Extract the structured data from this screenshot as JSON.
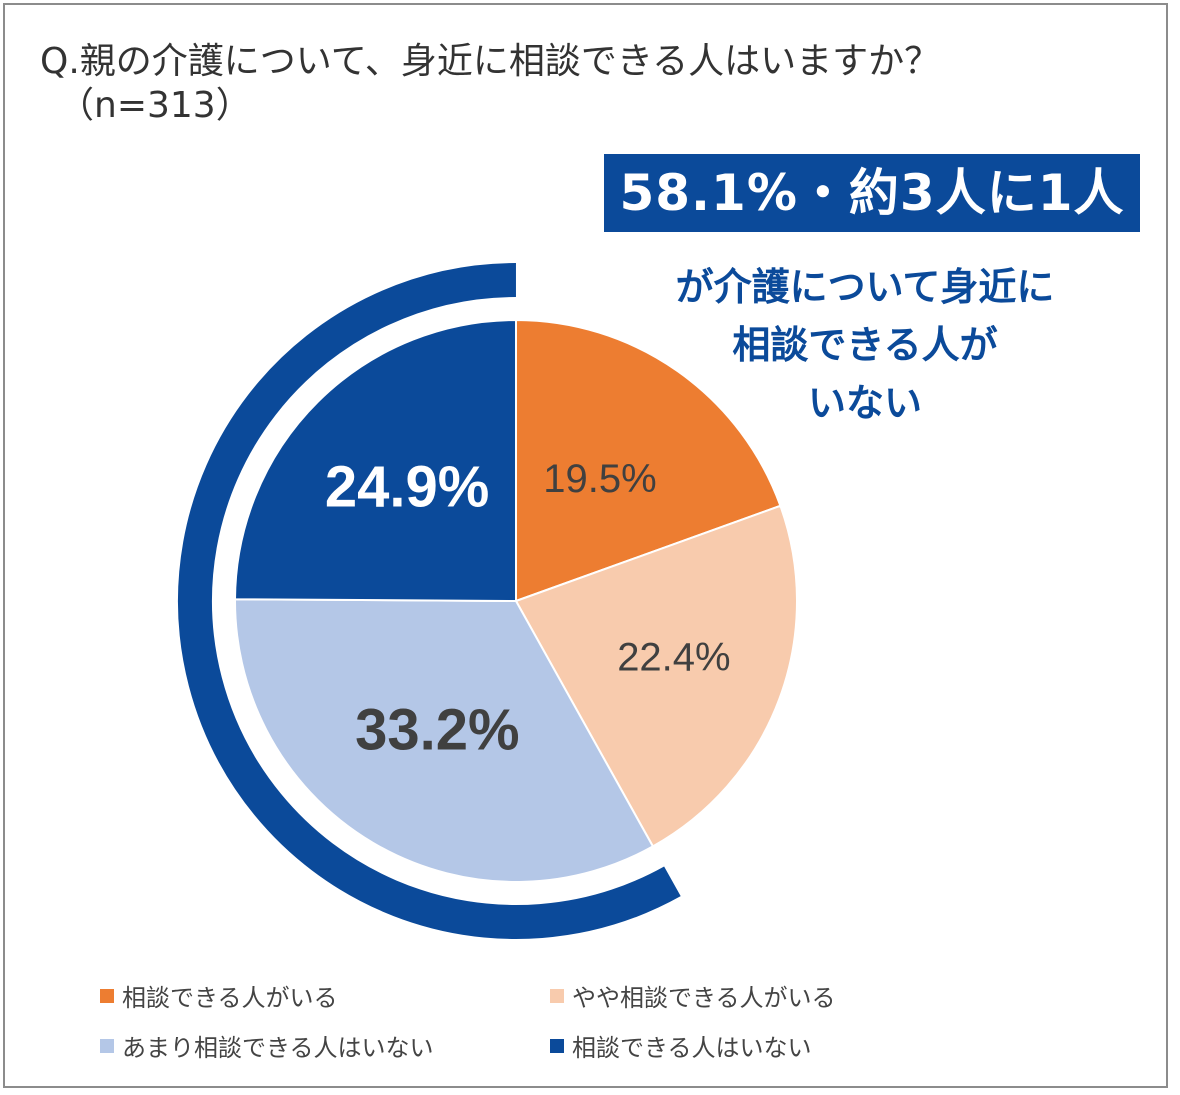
{
  "chart_data": {
    "type": "pie",
    "title_line1": "Q.親の介護について、身近に相談できる人はいますか？",
    "title_line2": "（n=313）",
    "slices": [
      {
        "label": "相談できる人がいる",
        "value": 19.5,
        "display": "19.5%",
        "color": "#ed7d31",
        "text_color": "#404040"
      },
      {
        "label": "やや相談できる人がいる",
        "value": 22.4,
        "display": "22.4%",
        "color": "#f8cbad",
        "text_color": "#404040"
      },
      {
        "label": "あまり相談できる人はいない",
        "value": 33.2,
        "display": "33.2%",
        "color": "#b4c7e7",
        "text_color": "#404040"
      },
      {
        "label": "相談できる人はいない",
        "value": 24.9,
        "display": "24.9%",
        "color": "#0b4a9a",
        "text_color": "#ffffff"
      }
    ],
    "highlight_group": {
      "slices": [
        "あまり相談できる人はいない",
        "相談できる人はいない"
      ],
      "color": "#0b4a9a"
    }
  },
  "headline": "58.1%・約3人に1人",
  "callout": [
    "が介護について身近に",
    "相談できる人が",
    "いない"
  ]
}
